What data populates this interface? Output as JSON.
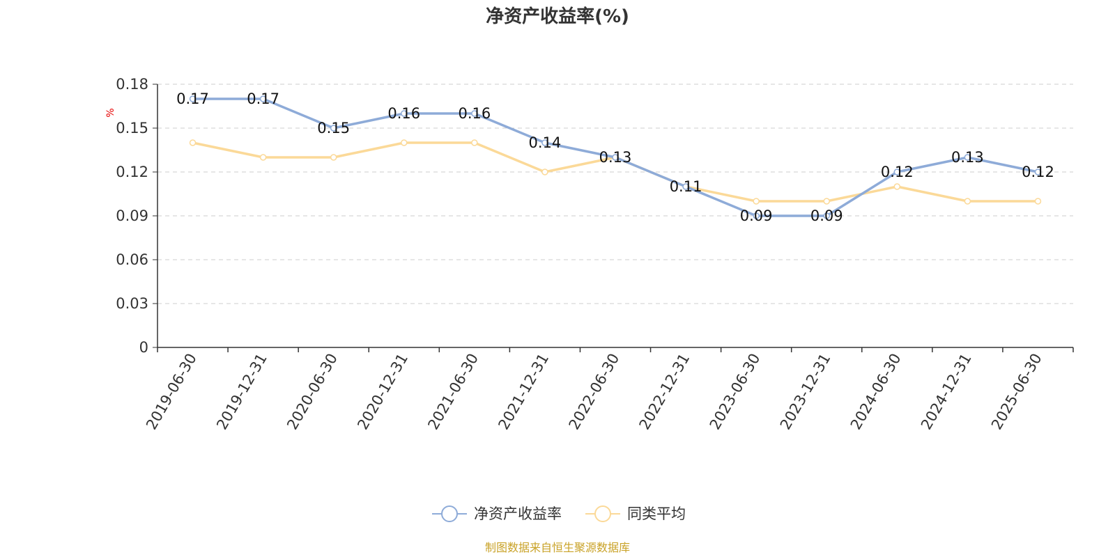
{
  "chart_data": {
    "type": "line",
    "title": "净资产收益率(%)",
    "ylabel": "%",
    "categories": [
      "2019-06-30",
      "2019-12-31",
      "2020-06-30",
      "2020-12-31",
      "2021-06-30",
      "2021-12-31",
      "2022-06-30",
      "2022-12-31",
      "2023-06-30",
      "2023-12-31",
      "2024-06-30",
      "2024-12-31",
      "2025-06-30"
    ],
    "ylim": [
      0,
      0.18
    ],
    "yticks": [
      "0",
      "0.03",
      "0.06",
      "0.09",
      "0.12",
      "0.15",
      "0.18"
    ],
    "grid": true,
    "legend_position": "bottom-center",
    "series": [
      {
        "name": "净资产收益率",
        "color": "#8eabd8",
        "show_labels": true,
        "values": [
          0.17,
          0.17,
          0.15,
          0.16,
          0.16,
          0.14,
          0.13,
          0.11,
          0.09,
          0.09,
          0.12,
          0.13,
          0.12
        ]
      },
      {
        "name": "同类平均",
        "color": "#fbd998",
        "show_labels": false,
        "values": [
          0.14,
          0.13,
          0.13,
          0.14,
          0.14,
          0.12,
          0.13,
          0.11,
          0.1,
          0.1,
          0.11,
          0.1,
          0.1
        ]
      }
    ]
  },
  "footer": {
    "source": "制图数据来自恒生聚源数据库"
  }
}
